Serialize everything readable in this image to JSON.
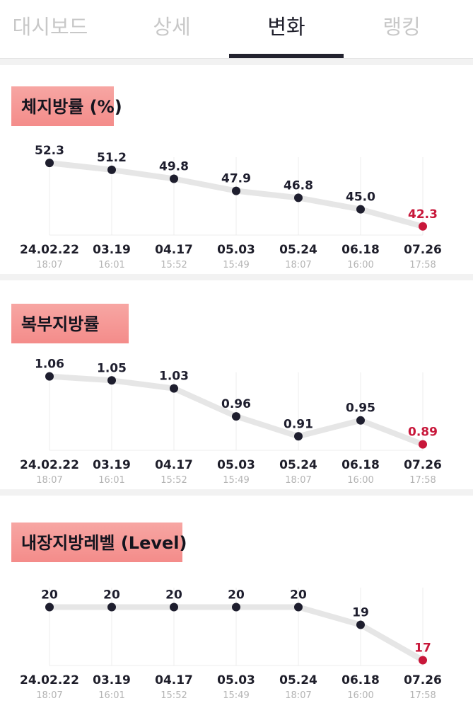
{
  "tabs": [
    {
      "label": "대시보드",
      "active": false
    },
    {
      "label": "상세",
      "active": false
    },
    {
      "label": "변화",
      "active": true
    },
    {
      "label": "랭킹",
      "active": false
    }
  ],
  "x_axis": {
    "dates": [
      "24.02.22",
      "03.19",
      "04.17",
      "05.03",
      "05.24",
      "06.18",
      "07.26"
    ],
    "times": [
      "18:07",
      "16:01",
      "15:52",
      "15:49",
      "18:07",
      "16:00",
      "17:58"
    ]
  },
  "colors": {
    "point": "#1e1e2e",
    "last_point": "#c8173a",
    "line": "#e6e6e6",
    "grid": "#ececec",
    "tag": "#f48c8a"
  },
  "chart_data": [
    {
      "type": "line",
      "title": "체지방률 (%)",
      "categories": [
        "24.02.22",
        "03.19",
        "04.17",
        "05.03",
        "05.24",
        "06.18",
        "07.26"
      ],
      "value_labels": [
        "52.3",
        "51.2",
        "49.8",
        "47.9",
        "46.8",
        "45.0",
        "42.3"
      ],
      "values": [
        52.3,
        51.2,
        49.8,
        47.9,
        46.8,
        45.0,
        42.3
      ],
      "ylim": [
        41.5,
        53.2
      ]
    },
    {
      "type": "line",
      "title": "복부지방률",
      "categories": [
        "24.02.22",
        "03.19",
        "04.17",
        "05.03",
        "05.24",
        "06.18",
        "07.26"
      ],
      "value_labels": [
        "1.06",
        "1.05",
        "1.03",
        "0.96",
        "0.91",
        "0.95",
        "0.89"
      ],
      "values": [
        1.06,
        1.05,
        1.03,
        0.96,
        0.91,
        0.95,
        0.89
      ],
      "ylim": [
        0.884,
        1.07
      ]
    },
    {
      "type": "line",
      "title": "내장지방레벨 (Level)",
      "categories": [
        "24.02.22",
        "03.19",
        "04.17",
        "05.03",
        "05.24",
        "06.18",
        "07.26"
      ],
      "value_labels": [
        "20",
        "20",
        "20",
        "20",
        "20",
        "19",
        "17"
      ],
      "values": [
        20,
        20,
        20,
        20,
        20,
        19,
        17
      ],
      "ylim": [
        16.9,
        21.1
      ]
    }
  ]
}
